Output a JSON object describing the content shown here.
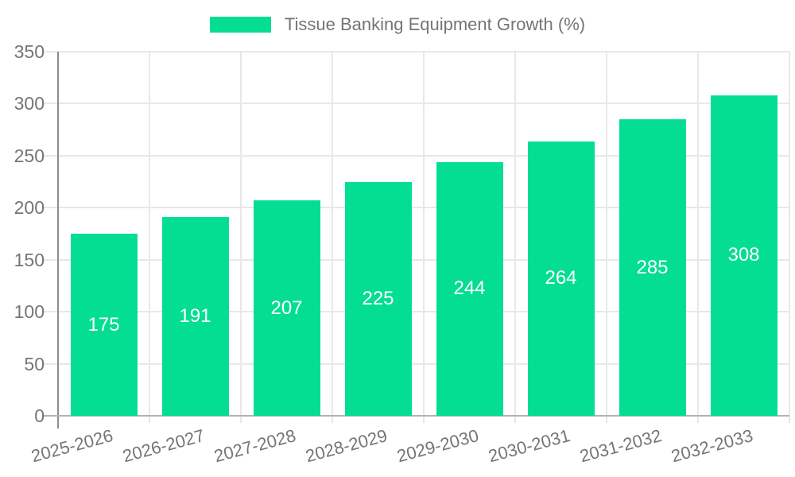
{
  "legend": {
    "label": "Tissue Banking Equipment Growth (%)"
  },
  "colors": {
    "bar": "#04DE93",
    "grid": "#e8e8e8",
    "axis_y": "#8c8c8c",
    "axis_x": "#b3b3b3",
    "tick_text": "#757575",
    "value_text": "#ffffff",
    "background": "#ffffff"
  },
  "chart_data": {
    "type": "bar",
    "title": "Tissue Banking Equipment Growth (%)",
    "categories": [
      "2025-2026",
      "2026-2027",
      "2027-2028",
      "2028-2029",
      "2029-2030",
      "2030-2031",
      "2031-2032",
      "2032-2033"
    ],
    "values": [
      175,
      191,
      207,
      225,
      244,
      264,
      285,
      308
    ],
    "series": [
      {
        "name": "Tissue Banking Equipment Growth (%)",
        "values": [
          175,
          191,
          207,
          225,
          244,
          264,
          285,
          308
        ]
      }
    ],
    "xlabel": "",
    "ylabel": "",
    "ylim": [
      0,
      350
    ],
    "yticks": [
      0,
      50,
      100,
      150,
      200,
      250,
      300,
      350
    ],
    "grid": true,
    "legend_position": "top-center",
    "bar_value_label_position": "inside-center",
    "x_tick_rotation_deg": -15
  }
}
